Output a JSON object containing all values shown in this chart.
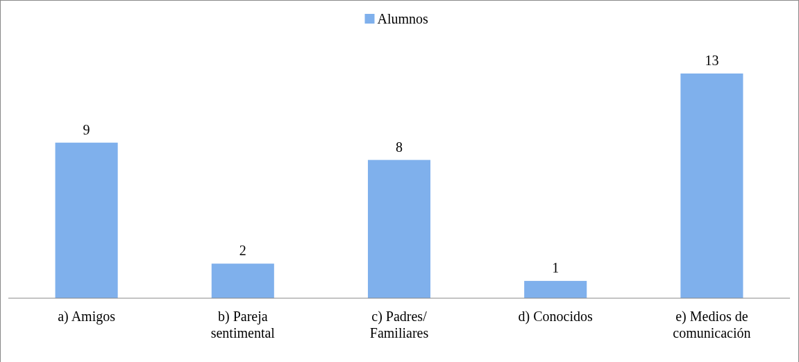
{
  "chart_data": {
    "type": "bar",
    "categories": [
      "a) Amigos",
      "b) Pareja sentimental",
      "c) Padres/Familiares",
      "d) Conocidos",
      "e) Medios de comunicación"
    ],
    "series": [
      {
        "name": "Alumnos",
        "color": "#7fb0ec",
        "values": [
          9,
          2,
          8,
          1,
          13
        ]
      }
    ],
    "data_labels": true,
    "legend": "top"
  }
}
